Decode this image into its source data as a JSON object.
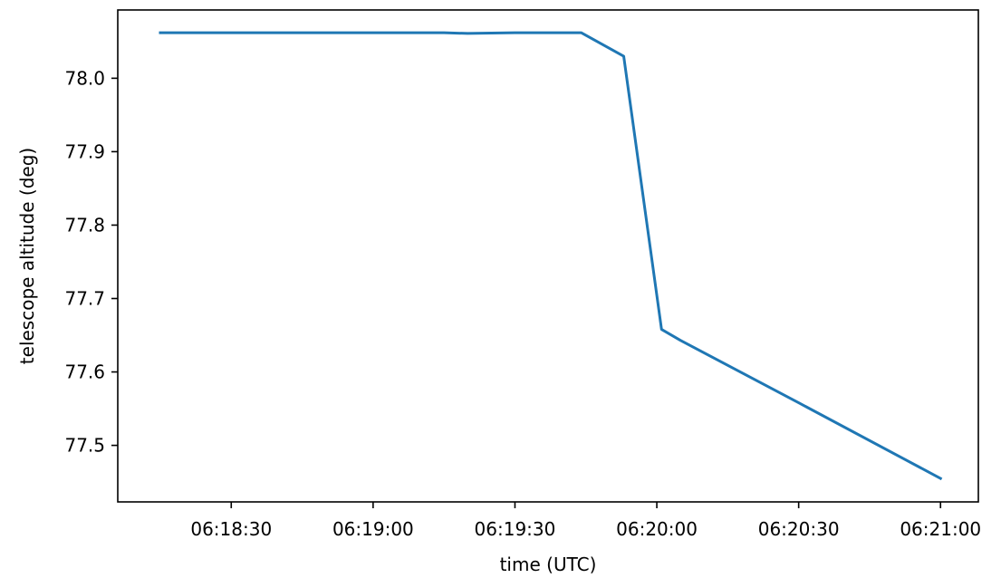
{
  "chart_data": {
    "type": "line",
    "title": "",
    "xlabel": "time (UTC)",
    "ylabel": "telescope altitude (deg)",
    "x_unit": "time",
    "xlim": [
      "06:18:06",
      "06:21:08"
    ],
    "ylim": [
      77.423,
      78.093
    ],
    "x_ticks": [
      "06:18:30",
      "06:19:00",
      "06:19:30",
      "06:20:00",
      "06:20:30",
      "06:21:00"
    ],
    "y_ticks": [
      "77.5",
      "77.6",
      "77.7",
      "77.8",
      "77.9",
      "78.0"
    ],
    "grid": false,
    "legend": "none",
    "series": [
      {
        "color": "#1f77b4",
        "points": [
          {
            "x": "06:18:15",
            "y": 78.062
          },
          {
            "x": "06:18:30",
            "y": 78.062
          },
          {
            "x": "06:19:00",
            "y": 78.062
          },
          {
            "x": "06:19:15",
            "y": 78.062
          },
          {
            "x": "06:19:20",
            "y": 78.061
          },
          {
            "x": "06:19:30",
            "y": 78.062
          },
          {
            "x": "06:19:44",
            "y": 78.062
          },
          {
            "x": "06:19:53",
            "y": 78.03
          },
          {
            "x": "06:20:01",
            "y": 77.658
          },
          {
            "x": "06:20:05",
            "y": 77.643
          },
          {
            "x": "06:20:30",
            "y": 77.558
          },
          {
            "x": "06:21:00",
            "y": 77.455
          }
        ]
      }
    ]
  }
}
